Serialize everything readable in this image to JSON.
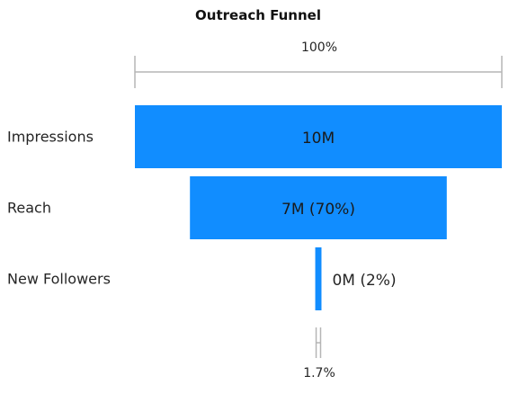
{
  "chart_data": {
    "type": "bar",
    "subtype": "funnel",
    "title": "Outreach Funnel",
    "categories": [
      "Impressions",
      "Reach",
      "New Followers"
    ],
    "values": [
      10,
      7,
      0.17
    ],
    "value_unit": "M",
    "bar_labels": [
      "10M",
      "7M (70%)",
      "0M (2%)"
    ],
    "top_percent_label": "100%",
    "bottom_percent_label": "1.7%",
    "xlim": [
      0,
      10
    ],
    "grid": false,
    "legend": "none",
    "bar_color": "#118DFF",
    "inside_label_color": "#1a1a1a",
    "outside_label_color": "#252525"
  }
}
